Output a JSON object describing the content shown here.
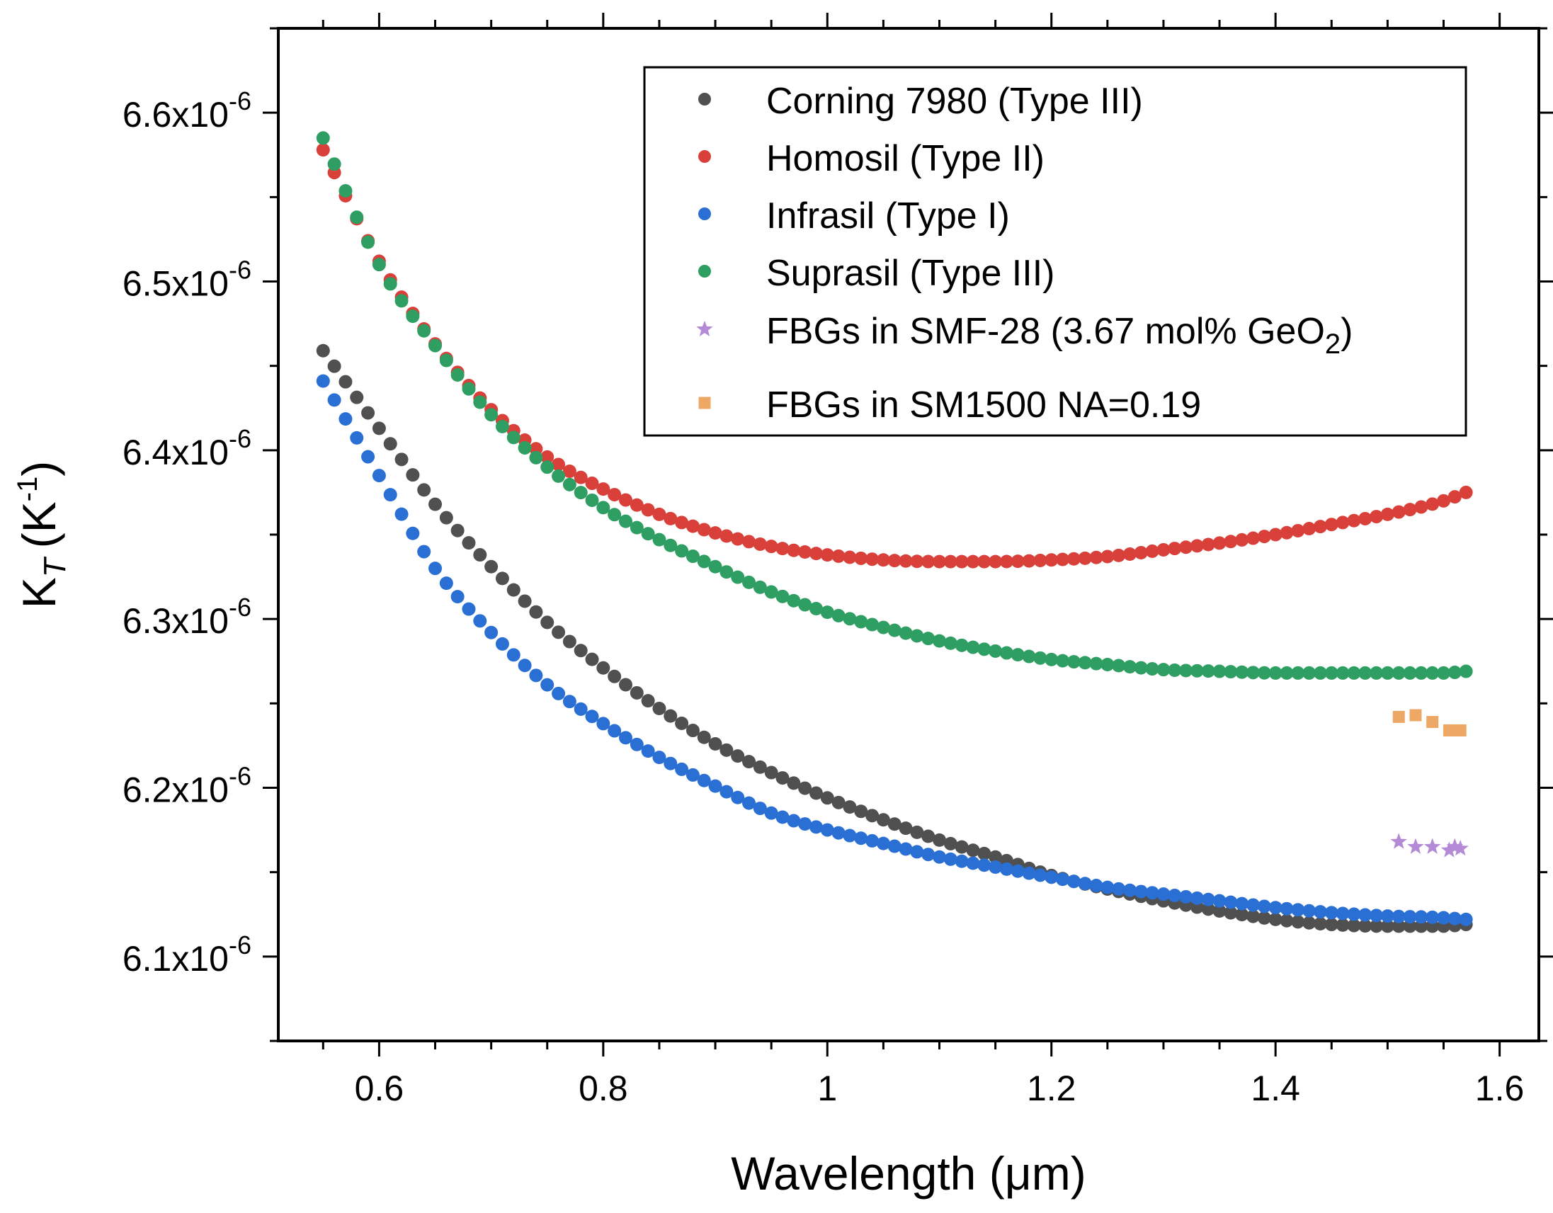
{
  "chart_data": {
    "type": "scatter",
    "title": "",
    "xlabel": "Wavelength (μm)",
    "ylabel_base": "K",
    "ylabel_sub": "T",
    "ylabel_unit": "(K",
    "ylabel_unit_sup": "-1",
    "ylabel_close": ")",
    "xlim": [
      0.51,
      1.635
    ],
    "ylim": [
      6.05e-06,
      6.65e-06
    ],
    "x_ticks": [
      0.6,
      0.8,
      1.0,
      1.2,
      1.4,
      1.6
    ],
    "x_tick_labels": [
      "0.6",
      "0.8",
      "1",
      "1.2",
      "1.4",
      "1.6"
    ],
    "y_ticks": [
      6.1e-06,
      6.2e-06,
      6.3e-06,
      6.4e-06,
      6.5e-06,
      6.6e-06
    ],
    "y_tick_labels": [
      {
        "mant": "6.1x10",
        "exp": "-6"
      },
      {
        "mant": "6.2x10",
        "exp": "-6"
      },
      {
        "mant": "6.3x10",
        "exp": "-6"
      },
      {
        "mant": "6.4x10",
        "exp": "-6"
      },
      {
        "mant": "6.5x10",
        "exp": "-6"
      },
      {
        "mant": "6.6x10",
        "exp": "-6"
      }
    ],
    "legend_placement": "top-right",
    "series": [
      {
        "name": "Corning 7980 (Type III)",
        "color": "#505050",
        "marker": "circle",
        "x": [
          0.55,
          0.6,
          0.65,
          0.7,
          0.75,
          0.8,
          0.85,
          0.9,
          0.95,
          1.0,
          1.05,
          1.1,
          1.15,
          1.2,
          1.25,
          1.3,
          1.35,
          1.4,
          1.45,
          1.5,
          1.55,
          1.57
        ],
        "y": [
          6.459e-06,
          6.413e-06,
          6.368e-06,
          6.331e-06,
          6.298e-06,
          6.271e-06,
          6.247e-06,
          6.226e-06,
          6.209e-06,
          6.194e-06,
          6.181e-06,
          6.169e-06,
          6.159e-06,
          6.148e-06,
          6.14e-06,
          6.133e-06,
          6.127e-06,
          6.122e-06,
          6.119e-06,
          6.118e-06,
          6.118e-06,
          6.119e-06
        ]
      },
      {
        "name": "Homosil (Type II)",
        "color": "#d9403a",
        "marker": "circle",
        "x": [
          0.55,
          0.6,
          0.65,
          0.7,
          0.75,
          0.8,
          0.85,
          0.9,
          0.95,
          1.0,
          1.05,
          1.1,
          1.15,
          1.2,
          1.25,
          1.3,
          1.35,
          1.4,
          1.45,
          1.5,
          1.55,
          1.57
        ],
        "y": [
          6.578e-06,
          6.512e-06,
          6.463e-06,
          6.424e-06,
          6.396e-06,
          6.377e-06,
          6.362e-06,
          6.351e-06,
          6.343e-06,
          6.338e-06,
          6.335e-06,
          6.334e-06,
          6.334e-06,
          6.335e-06,
          6.337e-06,
          6.341e-06,
          6.345e-06,
          6.35e-06,
          6.356e-06,
          6.362e-06,
          6.37e-06,
          6.375e-06
        ]
      },
      {
        "name": "Infrasil (Type I)",
        "color": "#2a6fd4",
        "marker": "circle",
        "x": [
          0.55,
          0.6,
          0.65,
          0.7,
          0.75,
          0.8,
          0.85,
          0.9,
          0.95,
          1.0,
          1.05,
          1.1,
          1.15,
          1.2,
          1.25,
          1.3,
          1.35,
          1.4,
          1.45,
          1.5,
          1.55,
          1.57
        ],
        "y": [
          6.441e-06,
          6.385e-06,
          6.33e-06,
          6.292e-06,
          6.261e-06,
          6.238e-06,
          6.218e-06,
          6.201e-06,
          6.185e-06,
          6.175e-06,
          6.167e-06,
          6.159e-06,
          6.153e-06,
          6.147e-06,
          6.141e-06,
          6.137e-06,
          6.133e-06,
          6.129e-06,
          6.126e-06,
          6.124e-06,
          6.123e-06,
          6.122e-06
        ]
      },
      {
        "name": "Suprasil (Type III)",
        "color": "#2e9e62",
        "marker": "circle",
        "x": [
          0.55,
          0.6,
          0.65,
          0.7,
          0.75,
          0.8,
          0.85,
          0.9,
          0.95,
          1.0,
          1.05,
          1.1,
          1.15,
          1.2,
          1.25,
          1.3,
          1.35,
          1.4,
          1.45,
          1.5,
          1.55,
          1.57
        ],
        "y": [
          6.585e-06,
          6.51e-06,
          6.462e-06,
          6.421e-06,
          6.39e-06,
          6.366e-06,
          6.347e-06,
          6.331e-06,
          6.316e-06,
          6.304e-06,
          6.295e-06,
          6.287e-06,
          6.281e-06,
          6.276e-06,
          6.273e-06,
          6.27e-06,
          6.269e-06,
          6.268e-06,
          6.268e-06,
          6.268e-06,
          6.268e-06,
          6.269e-06
        ]
      },
      {
        "name": "FBGs in SMF-28 (3.67 mol% GeO",
        "name_sub": "2",
        "name_tail": ")",
        "color": "#b48ad6",
        "marker": "star",
        "x": [
          1.51,
          1.525,
          1.54,
          1.555,
          1.56,
          1.565
        ],
        "y": [
          6.168e-06,
          6.165e-06,
          6.165e-06,
          6.163e-06,
          6.165e-06,
          6.164e-06
        ]
      },
      {
        "name": "FBGs in SM1500 NA=0.19",
        "color": "#eda866",
        "marker": "square",
        "x": [
          1.51,
          1.525,
          1.54,
          1.555,
          1.565
        ],
        "y": [
          6.242e-06,
          6.243e-06,
          6.239e-06,
          6.234e-06,
          6.234e-06
        ]
      }
    ]
  }
}
